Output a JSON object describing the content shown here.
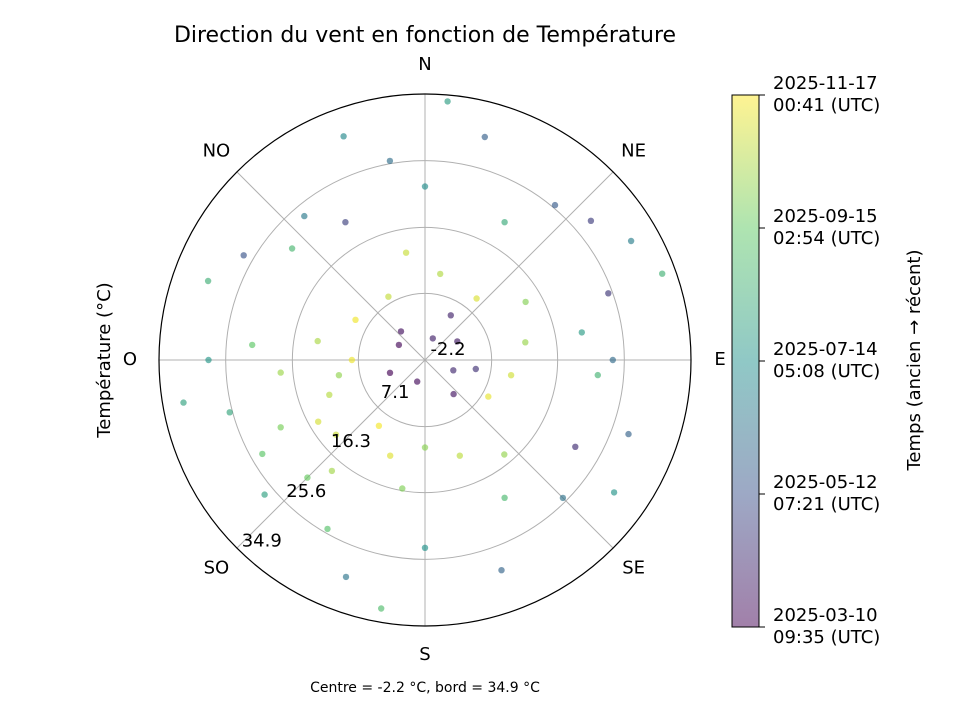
{
  "chart_data": {
    "type": "polar_scatter",
    "title": "Direction du vent en fonction de Température",
    "r_label": "Température (°C)",
    "note": "Centre = -2.2 °C, bord = 34.9 °C",
    "colorbar_label": "Temps (ancien → récent)",
    "rlim": [
      -2.2,
      34.9
    ],
    "rticks": [
      -2.2,
      7.1,
      16.3,
      25.6,
      34.9
    ],
    "thetaticks": [
      {
        "value": 0,
        "label": "N"
      },
      {
        "value": 45,
        "label": "NE"
      },
      {
        "value": 90,
        "label": "E"
      },
      {
        "value": 135,
        "label": "SE"
      },
      {
        "value": 180,
        "label": "S"
      },
      {
        "value": 225,
        "label": "SO"
      },
      {
        "value": 270,
        "label": "O"
      },
      {
        "value": 315,
        "label": "NO"
      }
    ],
    "clim": [
      "2025-03-10T09:35Z",
      "2025-11-17T00:41Z"
    ],
    "cticks": [
      {
        "value": "2025-03-10T09:35Z",
        "label": [
          "2025-03-10",
          "09:35 (UTC)"
        ]
      },
      {
        "value": "2025-05-12T07:21Z",
        "label": [
          "2025-05-12",
          "07:21 (UTC)"
        ]
      },
      {
        "value": "2025-07-14T05:08Z",
        "label": [
          "2025-07-14",
          "05:08 (UTC)"
        ]
      },
      {
        "value": "2025-09-15T02:54Z",
        "label": [
          "2025-09-15",
          "02:54 (UTC)"
        ]
      },
      {
        "value": "2025-11-17T00:41Z",
        "label": [
          "2025-11-17",
          "00:41 (UTC)"
        ]
      }
    ],
    "colormap": [
      "#440154",
      "#3b528b",
      "#21918c",
      "#5ec962",
      "#fde725"
    ],
    "grid": true,
    "theta": [
      250,
      240,
      260,
      230,
      270,
      220,
      200,
      280,
      300,
      330,
      10,
      40,
      80,
      100,
      120,
      160,
      180,
      190,
      245,
      265,
      215,
      60,
      140,
      350,
      300,
      320,
      20,
      60,
      110,
      200,
      250,
      30,
      100,
      140,
      70,
      50,
      120,
      330,
      40,
      90,
      110,
      135,
      300,
      320,
      15,
      350,
      200,
      160,
      60,
      270,
      255,
      230,
      290,
      310,
      0,
      30,
      80,
      95,
      180,
      210,
      240,
      260,
      340,
      150,
      125,
      190,
      275,
      225,
      5,
      70
    ],
    "values": [
      12,
      15,
      10,
      14,
      8,
      18,
      12,
      13,
      9,
      8,
      10,
      9,
      12,
      10,
      8,
      12,
      10,
      16,
      20,
      18,
      9,
      14,
      15,
      13,
      2,
      3,
      1,
      3,
      2,
      1,
      3,
      5,
      5,
      4,
      25,
      28,
      22,
      20,
      26,
      24,
      28,
      25,
      27,
      24,
      30,
      26,
      30,
      29,
      31,
      28,
      26,
      27,
      30,
      22,
      22,
      20,
      20,
      22,
      24,
      25,
      24,
      32,
      31,
      20,
      30,
      33,
      22,
      21,
      34,
      33
    ],
    "time": [
      "2025-10-20",
      "2025-11-01",
      "2025-10-05",
      "2025-10-28",
      "2025-11-10",
      "2025-10-12",
      "2025-11-05",
      "2025-10-15",
      "2025-11-12",
      "2025-10-25",
      "2025-10-18",
      "2025-11-03",
      "2025-10-08",
      "2025-10-30",
      "2025-11-08",
      "2025-10-22",
      "2025-10-02",
      "2025-09-28",
      "2025-09-25",
      "2025-10-10",
      "2025-11-14",
      "2025-09-30",
      "2025-10-06",
      "2025-10-27",
      "2025-03-15",
      "2025-03-22",
      "2025-04-02",
      "2025-03-28",
      "2025-04-10",
      "2025-03-18",
      "2025-03-12",
      "2025-04-05",
      "2025-04-15",
      "2025-03-25",
      "2025-04-20",
      "2025-04-25",
      "2025-04-12",
      "2025-04-28",
      "2025-05-20",
      "2025-06-05",
      "2025-05-28",
      "2025-06-12",
      "2025-05-15",
      "2025-06-20",
      "2025-05-25",
      "2025-06-08",
      "2025-06-15",
      "2025-05-30",
      "2025-06-25",
      "2025-07-20",
      "2025-08-05",
      "2025-07-30",
      "2025-08-15",
      "2025-08-25",
      "2025-07-10",
      "2025-08-10",
      "2025-07-25",
      "2025-08-20",
      "2025-07-15",
      "2025-09-05",
      "2025-09-10",
      "2025-08-01",
      "2025-07-05",
      "2025-08-28",
      "2025-07-18",
      "2025-09-01",
      "2025-09-12",
      "2025-09-18",
      "2025-07-28",
      "2025-08-18"
    ]
  }
}
